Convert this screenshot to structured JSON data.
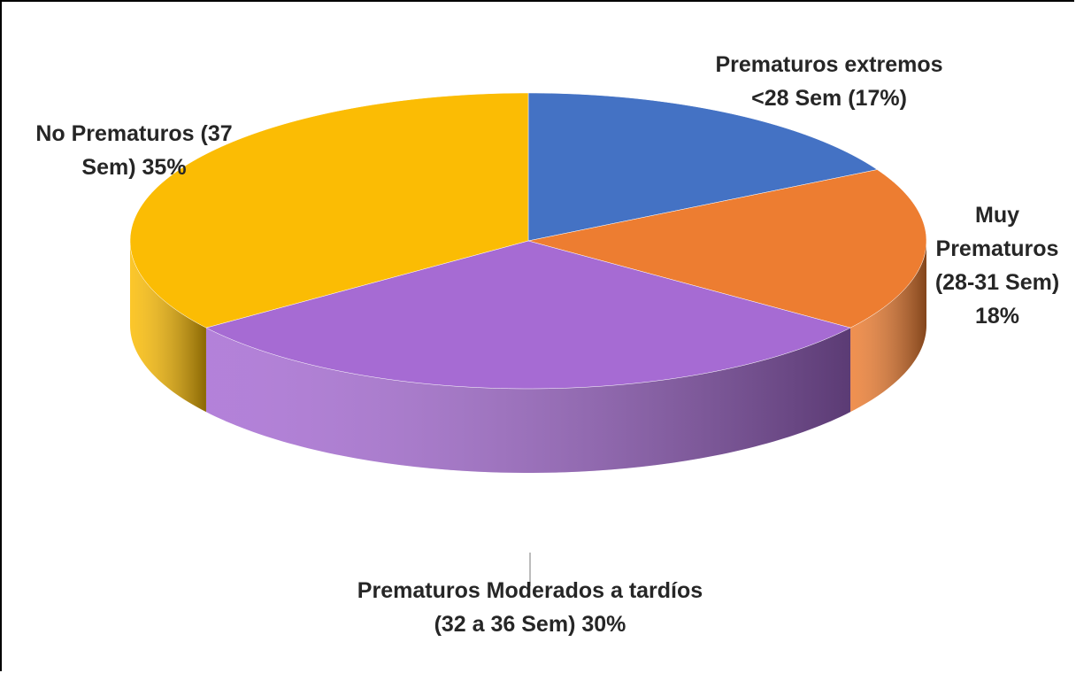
{
  "chart_data": {
    "type": "pie",
    "categories": [
      "Prematuros extremos <28 Sem",
      "Muy Prematuros (28-31 Sem)",
      "Prematuros Moderados a tardíos (32 a 36 Sem)",
      "No Prematuros (37 Sem)"
    ],
    "values": [
      17,
      18,
      30,
      35
    ],
    "value_labels": [
      "(17%)",
      "18%",
      "30%",
      "35%"
    ],
    "colors": [
      "#4472c4",
      "#ed7d31",
      "#a66bd3",
      "#fbbc04"
    ]
  }
}
